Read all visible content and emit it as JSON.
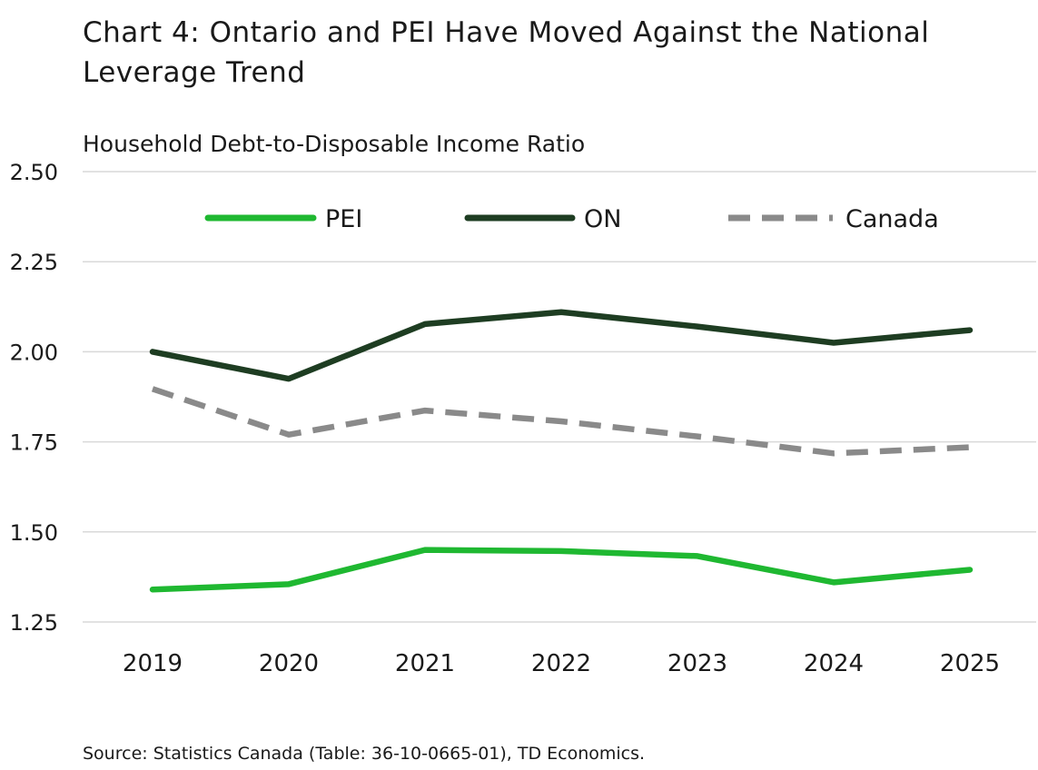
{
  "title": "Chart 4: Ontario and PEI Have Moved Against the National Leverage Trend",
  "subtitle": "Household Debt-to-Disposable Income Ratio",
  "source": "Source: Statistics Canada (Table: 36-10-0665-01), TD Economics.",
  "chart_data": {
    "type": "line",
    "categories": [
      "2019",
      "2020",
      "2021",
      "2022",
      "2023",
      "2024",
      "2025"
    ],
    "ylim": [
      1.25,
      2.5
    ],
    "yticks": [
      "1.25",
      "1.50",
      "1.75",
      "2.00",
      "2.25",
      "2.50"
    ],
    "ytick_values": [
      1.25,
      1.5,
      1.75,
      2.0,
      2.25,
      2.5
    ],
    "grid": true,
    "legend": "top-center",
    "series": [
      {
        "name": "PEI",
        "color": "#1fb831",
        "dash": "solid",
        "values": [
          1.34,
          1.355,
          1.45,
          1.447,
          1.433,
          1.36,
          1.395
        ]
      },
      {
        "name": "ON",
        "color": "#1e3d22",
        "dash": "solid",
        "values": [
          2.0,
          1.925,
          2.077,
          2.11,
          2.07,
          2.025,
          2.06
        ]
      },
      {
        "name": "Canada",
        "color": "#8a8a8a",
        "dash": "dashed",
        "values": [
          1.897,
          1.77,
          1.837,
          1.807,
          1.765,
          1.718,
          1.735
        ]
      }
    ]
  }
}
